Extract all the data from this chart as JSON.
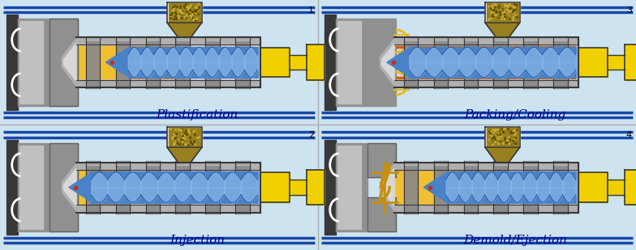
{
  "background_color": "#cde4f0",
  "title_color": "#00008B",
  "labels": [
    "Plastification",
    "Injection",
    "Packing/Cooling",
    "Demold/Ejection"
  ],
  "step_numbers": [
    "1",
    "2",
    "3",
    "4"
  ],
  "label_fontsize": 11,
  "number_fontsize": 8,
  "colors": {
    "barrel_outer": "#b0b0b0",
    "barrel_inner": "#d8d8d8",
    "barrel_wall": "#909090",
    "screw_blue_dark": "#2255a0",
    "screw_blue": "#4a82c8",
    "screw_blue_light": "#88b8e8",
    "melt_orange": "#d06000",
    "melt_orange2": "#e88020",
    "melt_yellow": "#f0c030",
    "melt_yellow2": "#f8e060",
    "pellet_dark": "#605000",
    "pellet_mid": "#988020",
    "pellet_light": "#c8aa30",
    "hopper_white": "#f8f8f8",
    "heater_gray": "#888888",
    "heater_light": "#b8b8b8",
    "mold_gray": "#909090",
    "mold_light": "#c0c0c0",
    "mold_dark": "#606060",
    "clamp_dark": "#383838",
    "rail_dark": "#222222",
    "rail_blue": "#1848a8",
    "actuator_yellow": "#f0d000",
    "actuator_dark": "#c0a000",
    "part_gold": "#c8900a",
    "part_yellow": "#e8b820",
    "nozzle_tip": "#c8320a",
    "divider": "#aaaaaa"
  }
}
